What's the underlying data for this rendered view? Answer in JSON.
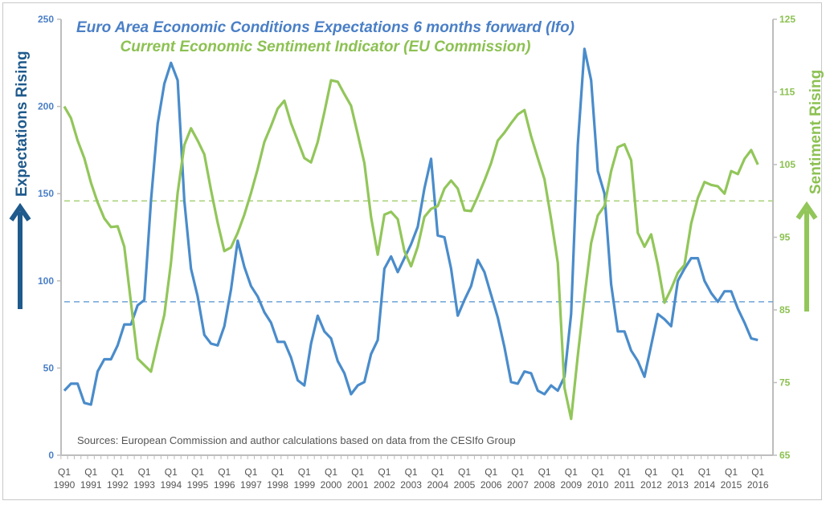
{
  "chart_data": {
    "type": "line",
    "title_lines": [
      "Euro Area Economic Conditions Expectations 6 months forward (Ifo)",
      "Current Economic Sentiment Indicator (EU Commission)"
    ],
    "source_note": "Sources: European Commission and author calculations based on data from the CESIfo Group",
    "y_left": {
      "label": "Expectations Rising",
      "range": [
        0,
        250
      ],
      "ticks": [
        0,
        50,
        100,
        150,
        200,
        250
      ],
      "color": "#4a7fc6"
    },
    "y_right": {
      "label": "Sentiment Rising",
      "range": [
        65,
        125
      ],
      "ticks": [
        65,
        75,
        85,
        95,
        105,
        115,
        125
      ],
      "color": "#8cc152"
    },
    "x": {
      "start": "1990 Q1",
      "end": "2016 Q1",
      "frequency": "quarterly",
      "tick_quarter": "Q1",
      "tick_years": [
        "1990",
        "1991",
        "1992",
        "1993",
        "1994",
        "1995",
        "1996",
        "1997",
        "1998",
        "1999",
        "2000",
        "2001",
        "2002",
        "2003",
        "2004",
        "2005",
        "2006",
        "2007",
        "2008",
        "2009",
        "2010",
        "2011",
        "2012",
        "2013",
        "2014",
        "2015",
        "2016"
      ]
    },
    "grid": false,
    "series": [
      {
        "axis": "left",
        "color": "#4a8ccb",
        "values": [
          37,
          41,
          41,
          30,
          29,
          48,
          55,
          55,
          63,
          75,
          75,
          86,
          89,
          146,
          190,
          213,
          225,
          215,
          146,
          107,
          91,
          69,
          64,
          63,
          74,
          95,
          123,
          108,
          97,
          91,
          82,
          76,
          65,
          65,
          56,
          43,
          40,
          64,
          80,
          71,
          67,
          54,
          47,
          35,
          40,
          42,
          58,
          66,
          107,
          114,
          105,
          113,
          121,
          131,
          153,
          170,
          126,
          125,
          107,
          80,
          89,
          97,
          112,
          105,
          92,
          79,
          62,
          42,
          41,
          48,
          47,
          37,
          35,
          40,
          37,
          45,
          81,
          178,
          233,
          215,
          163,
          150,
          98,
          71,
          71,
          60,
          54,
          45,
          63,
          81,
          78,
          74,
          100,
          107,
          113,
          113,
          100,
          93,
          88,
          94,
          94,
          84,
          76,
          67,
          66
        ]
      },
      {
        "axis": "right",
        "color": "#92c65a",
        "values": [
          113.0,
          111.4,
          108.3,
          105.9,
          102.5,
          99.8,
          97.6,
          96.4,
          96.5,
          93.7,
          86.0,
          78.3,
          77.4,
          76.5,
          80.5,
          84.3,
          91.5,
          101.1,
          107.7,
          110.0,
          108.3,
          106.4,
          101.5,
          97.0,
          93.1,
          93.6,
          95.6,
          98.1,
          101.1,
          104.4,
          108.1,
          110.3,
          112.7,
          113.8,
          110.7,
          108.3,
          105.9,
          105.3,
          108.1,
          112.2,
          116.6,
          116.4,
          114.7,
          113.1,
          109.2,
          105.2,
          97.8,
          92.6,
          98.1,
          98.5,
          97.5,
          93.1,
          91.0,
          93.7,
          97.8,
          98.9,
          99.3,
          101.7,
          102.8,
          101.7,
          98.7,
          98.6,
          100.6,
          102.8,
          105.2,
          108.3,
          109.4,
          110.7,
          111.9,
          112.5,
          108.9,
          105.9,
          103.0,
          97.5,
          91.5,
          74.3,
          70.0,
          78.7,
          86.8,
          94.2,
          98.0,
          99.3,
          104.1,
          107.4,
          107.8,
          105.6,
          95.6,
          93.7,
          95.4,
          91.2,
          86.0,
          87.9,
          90.1,
          91.2,
          96.9,
          100.4,
          102.6,
          102.2,
          102.0,
          101.0,
          104.1,
          103.7,
          105.8,
          107.0,
          105.0
        ]
      }
    ],
    "reference_lines": [
      {
        "axis": "left",
        "value": 88,
        "style": "dashed",
        "color": "#6fa3d8"
      },
      {
        "axis": "right",
        "value": 100,
        "style": "dashed",
        "color": "#a8d27a"
      }
    ],
    "arrows": [
      {
        "side": "left",
        "direction": "up",
        "color": "#1f5a8c"
      },
      {
        "side": "right",
        "direction": "up",
        "color": "#92c65a"
      }
    ]
  }
}
